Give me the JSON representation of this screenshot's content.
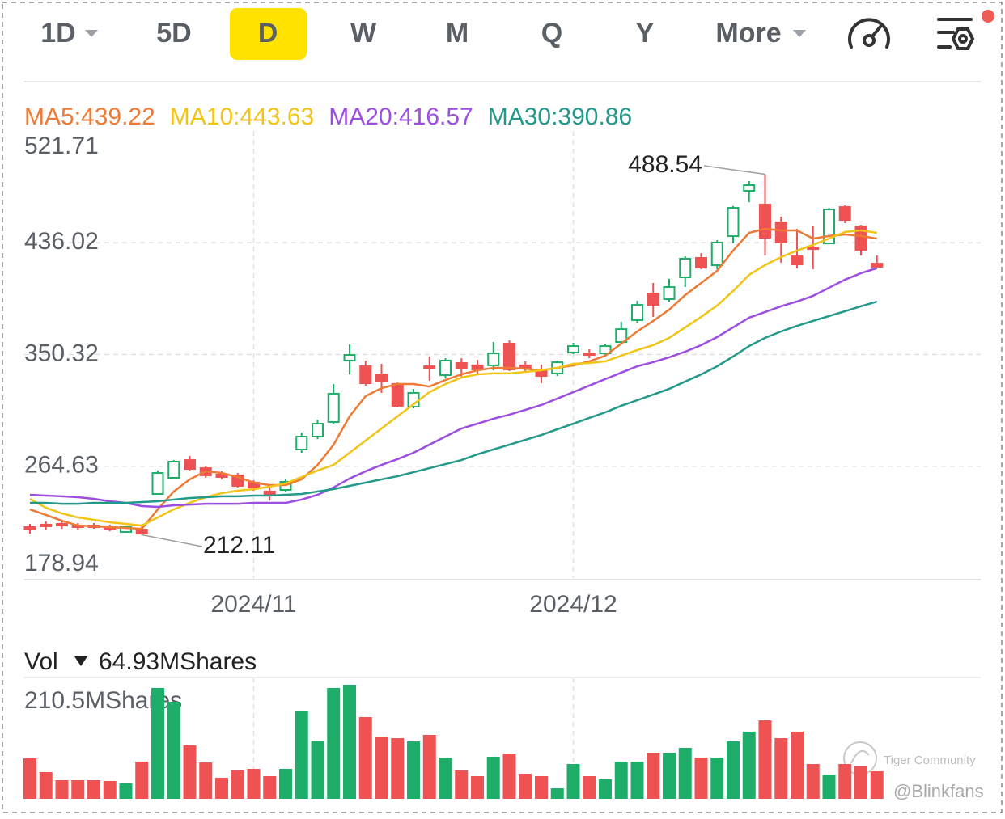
{
  "toolbar": {
    "tabs": [
      "1D",
      "5D",
      "D",
      "W",
      "M",
      "Q",
      "Y",
      "More"
    ],
    "selected": 2
  },
  "chart_data": {
    "type": "candlestick",
    "categories": [
      null,
      null,
      null,
      null,
      null,
      null,
      null,
      null,
      null,
      null,
      null,
      null,
      null,
      null,
      "2024/11",
      null,
      null,
      null,
      null,
      null,
      null,
      null,
      null,
      null,
      null,
      null,
      null,
      null,
      null,
      null,
      null,
      null,
      null,
      null,
      "2024/12",
      null,
      null,
      null,
      null,
      null,
      null,
      null,
      null,
      null,
      null,
      null,
      null,
      null,
      null,
      null,
      null,
      null,
      null,
      null
    ],
    "open": [
      218.0,
      219.9,
      220.5,
      219.2,
      219.2,
      218.0,
      214.3,
      216.1,
      243.4,
      255.8,
      269.4,
      263.2,
      258.3,
      257.7,
      252.1,
      245.3,
      246.5,
      277.5,
      287.4,
      298.6,
      345.7,
      341.3,
      335.1,
      327.7,
      310.3,
      341.3,
      334.5,
      343.8,
      342.0,
      342.0,
      358.7,
      342.0,
      338.9,
      335.8,
      351.9,
      351.2,
      351.2,
      359.9,
      376.7,
      397.1,
      392.8,
      409.5,
      424.4,
      418.8,
      441.1,
      475.8,
      465.3,
      451.7,
      425.6,
      432.4,
      435.5,
      463.4,
      448.6,
      420.0
    ],
    "high": [
      220.5,
      222.3,
      222.9,
      221.1,
      221.1,
      219.9,
      218.6,
      219.2,
      261.4,
      269.4,
      272.5,
      265.1,
      260.8,
      259.5,
      253.9,
      250.2,
      255.2,
      290.5,
      300.4,
      327.7,
      358.1,
      345.7,
      343.2,
      328.9,
      324.0,
      348.8,
      347.5,
      347.5,
      346.3,
      359.9,
      361.2,
      345.1,
      342.6,
      345.7,
      359.3,
      354.3,
      358.7,
      375.4,
      391.5,
      405.2,
      408.3,
      425.6,
      428.1,
      438.0,
      464.1,
      483.3,
      488.54,
      456.0,
      446.7,
      448.6,
      462.8,
      464.7,
      449.8,
      426.2
    ],
    "low": [
      213.0,
      215.5,
      216.7,
      216.1,
      216.7,
      214.9,
      213.6,
      212.11,
      242.8,
      255.2,
      261.4,
      255.8,
      254.6,
      248.4,
      245.9,
      238.4,
      245.3,
      275.0,
      285.5,
      297.3,
      335.1,
      326.5,
      320.9,
      309.7,
      309.1,
      330.2,
      332.0,
      333.3,
      335.8,
      338.2,
      337.6,
      336.4,
      328.3,
      333.9,
      350.6,
      347.5,
      349.4,
      358.7,
      374.2,
      379.1,
      390.9,
      402.1,
      415.7,
      415.7,
      435.5,
      467.1,
      426.2,
      420.7,
      416.3,
      415.7,
      434.9,
      451.0,
      426.2,
      416.9
    ],
    "close": [
      216.1,
      218.6,
      219.2,
      218.0,
      218.0,
      216.7,
      218.0,
      213.0,
      259.5,
      268.2,
      262.6,
      257.7,
      256.4,
      249.6,
      248.4,
      243.4,
      252.7,
      287.4,
      297.3,
      320.3,
      350.0,
      328.3,
      330.2,
      311.0,
      320.9,
      340.1,
      345.7,
      340.1,
      338.9,
      351.2,
      338.9,
      339.5,
      333.9,
      344.4,
      356.8,
      350.6,
      356.8,
      369.8,
      388.4,
      388.4,
      402.1,
      423.8,
      416.9,
      436.2,
      462.8,
      480.2,
      439.9,
      436.2,
      419.4,
      431.2,
      461.6,
      453.5,
      430.6,
      417.6
    ],
    "up_color": "#1fae69",
    "down_color": "#ee5252",
    "series": [
      {
        "name": "MA5:439.22",
        "color": "#ee7a35",
        "values": [
          231.6,
          227.3,
          222.9,
          219.2,
          218.6,
          218.0,
          217.4,
          216.7,
          231.6,
          245.3,
          254.6,
          260.8,
          259.5,
          256.4,
          252.1,
          250.2,
          250.2,
          254.6,
          265.7,
          281.2,
          302.9,
          318.4,
          324.6,
          327.7,
          327.7,
          325.8,
          330.8,
          335.1,
          338.2,
          340.1,
          340.1,
          339.5,
          338.2,
          340.1,
          342.0,
          345.1,
          349.4,
          358.7,
          368.0,
          376.1,
          384.7,
          395.9,
          405.2,
          414.5,
          430.0,
          443.6,
          446.7,
          445.5,
          445.5,
          439.2,
          441.2,
          442.4,
          441.2,
          439.22
        ]
      },
      {
        "name": "MA10:443.63",
        "color": "#f2c417",
        "values": [
          239.7,
          232.8,
          228.5,
          225.4,
          223.6,
          221.7,
          220.5,
          219.2,
          225.4,
          231.6,
          236.6,
          240.9,
          244.0,
          245.9,
          247.1,
          249.0,
          251.5,
          256.4,
          261.4,
          265.7,
          275.0,
          284.3,
          293.6,
          302.9,
          312.2,
          321.5,
          327.7,
          332.7,
          335.1,
          335.8,
          335.8,
          337.0,
          338.2,
          340.1,
          343.2,
          343.8,
          345.1,
          349.4,
          353.8,
          357.5,
          363.1,
          371.1,
          379.2,
          387.9,
          399.0,
          411.4,
          418.9,
          425.1,
          430.0,
          434.4,
          439.2,
          444.3,
          445.5,
          443.63
        ]
      },
      {
        "name": "MA20:416.57",
        "color": "#9b4ee0",
        "values": [
          242.8,
          242.2,
          241.6,
          240.9,
          239.7,
          237.8,
          236.6,
          234.1,
          233.5,
          234.7,
          235.3,
          235.9,
          235.9,
          235.9,
          236.6,
          236.6,
          236.6,
          239.1,
          242.8,
          248.4,
          255.2,
          260.8,
          265.7,
          270.1,
          275.0,
          281.2,
          287.4,
          293.6,
          297.3,
          301.1,
          304.2,
          307.9,
          311.6,
          316.6,
          321.5,
          326.5,
          331.5,
          336.4,
          341.3,
          344.5,
          348.2,
          352.5,
          357.5,
          363.7,
          371.1,
          378.6,
          382.9,
          387.3,
          391.0,
          395.3,
          401.5,
          407.7,
          412.7,
          416.57
        ]
      },
      {
        "name": "MA30:390.86",
        "color": "#23998a",
        "values": [
          236.6,
          236.6,
          235.9,
          235.9,
          236.6,
          236.6,
          236.6,
          237.2,
          237.8,
          239.1,
          240.3,
          240.9,
          241.6,
          241.6,
          242.2,
          242.2,
          242.8,
          243.4,
          245.3,
          247.1,
          249.6,
          252.1,
          254.6,
          257.0,
          260.1,
          263.2,
          266.3,
          269.4,
          273.8,
          277.5,
          281.2,
          284.9,
          288.6,
          293.0,
          297.3,
          301.7,
          306.0,
          311.0,
          315.3,
          319.6,
          324.0,
          329.6,
          335.1,
          341.3,
          348.8,
          356.8,
          363.1,
          368.0,
          372.3,
          376.1,
          379.8,
          383.5,
          387.3,
          390.86
        ]
      }
    ],
    "ylim": [
      178.94,
      521.71
    ],
    "yticks": [
      178.94,
      264.63,
      350.32,
      436.02,
      521.71
    ],
    "grid": true,
    "volume": {
      "title": "Vol",
      "current": "64.93MShares",
      "ylim": [
        0,
        210.5
      ],
      "yticks": [
        {
          "value": 210.5,
          "label": "210.5MShares"
        }
      ],
      "values": [
        70.2,
        46.3,
        32.3,
        32.3,
        32.3,
        30.9,
        26.7,
        64.6,
        192.3,
        168.4,
        92.6,
        63.1,
        36.5,
        49.1,
        51.9,
        39.3,
        51.9,
        151.6,
        101.0,
        192.3,
        197.9,
        141.7,
        108.1,
        105.2,
        99.6,
        110.9,
        71.6,
        49.1,
        39.3,
        73.0,
        78.6,
        43.5,
        39.3,
        18.2,
        60.3,
        39.3,
        33.7,
        64.6,
        64.6,
        80.0,
        80.0,
        88.4,
        71.6,
        71.6,
        99.6,
        116.5,
        136.1,
        105.2,
        116.5,
        60.3,
        42.1,
        60.3,
        56.1,
        47.7
      ]
    }
  },
  "watermark": {
    "brand": "Tiger Community",
    "user": "@Blinkfans"
  }
}
